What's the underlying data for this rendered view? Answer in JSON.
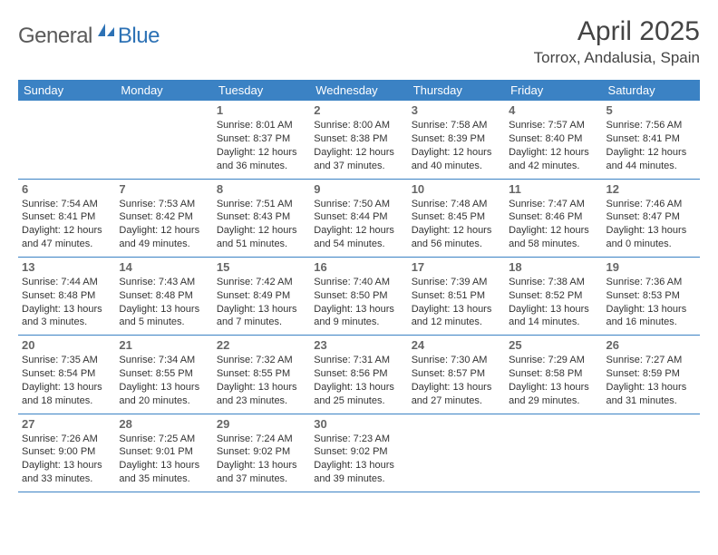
{
  "logo": {
    "general": "General",
    "blue": "Blue"
  },
  "title": "April 2025",
  "location": "Torrox, Andalusia, Spain",
  "colors": {
    "header_bg": "#3b82c4",
    "header_text": "#ffffff",
    "border": "#3b82c4",
    "logo_gray": "#5a5a5a",
    "logo_blue": "#2d72b5",
    "text": "#333333",
    "daynum": "#666666"
  },
  "day_headers": [
    "Sunday",
    "Monday",
    "Tuesday",
    "Wednesday",
    "Thursday",
    "Friday",
    "Saturday"
  ],
  "weeks": [
    [
      null,
      null,
      {
        "n": "1",
        "sr": "8:01 AM",
        "ss": "8:37 PM",
        "dl": "12 hours and 36 minutes."
      },
      {
        "n": "2",
        "sr": "8:00 AM",
        "ss": "8:38 PM",
        "dl": "12 hours and 37 minutes."
      },
      {
        "n": "3",
        "sr": "7:58 AM",
        "ss": "8:39 PM",
        "dl": "12 hours and 40 minutes."
      },
      {
        "n": "4",
        "sr": "7:57 AM",
        "ss": "8:40 PM",
        "dl": "12 hours and 42 minutes."
      },
      {
        "n": "5",
        "sr": "7:56 AM",
        "ss": "8:41 PM",
        "dl": "12 hours and 44 minutes."
      }
    ],
    [
      {
        "n": "6",
        "sr": "7:54 AM",
        "ss": "8:41 PM",
        "dl": "12 hours and 47 minutes."
      },
      {
        "n": "7",
        "sr": "7:53 AM",
        "ss": "8:42 PM",
        "dl": "12 hours and 49 minutes."
      },
      {
        "n": "8",
        "sr": "7:51 AM",
        "ss": "8:43 PM",
        "dl": "12 hours and 51 minutes."
      },
      {
        "n": "9",
        "sr": "7:50 AM",
        "ss": "8:44 PM",
        "dl": "12 hours and 54 minutes."
      },
      {
        "n": "10",
        "sr": "7:48 AM",
        "ss": "8:45 PM",
        "dl": "12 hours and 56 minutes."
      },
      {
        "n": "11",
        "sr": "7:47 AM",
        "ss": "8:46 PM",
        "dl": "12 hours and 58 minutes."
      },
      {
        "n": "12",
        "sr": "7:46 AM",
        "ss": "8:47 PM",
        "dl": "13 hours and 0 minutes."
      }
    ],
    [
      {
        "n": "13",
        "sr": "7:44 AM",
        "ss": "8:48 PM",
        "dl": "13 hours and 3 minutes."
      },
      {
        "n": "14",
        "sr": "7:43 AM",
        "ss": "8:48 PM",
        "dl": "13 hours and 5 minutes."
      },
      {
        "n": "15",
        "sr": "7:42 AM",
        "ss": "8:49 PM",
        "dl": "13 hours and 7 minutes."
      },
      {
        "n": "16",
        "sr": "7:40 AM",
        "ss": "8:50 PM",
        "dl": "13 hours and 9 minutes."
      },
      {
        "n": "17",
        "sr": "7:39 AM",
        "ss": "8:51 PM",
        "dl": "13 hours and 12 minutes."
      },
      {
        "n": "18",
        "sr": "7:38 AM",
        "ss": "8:52 PM",
        "dl": "13 hours and 14 minutes."
      },
      {
        "n": "19",
        "sr": "7:36 AM",
        "ss": "8:53 PM",
        "dl": "13 hours and 16 minutes."
      }
    ],
    [
      {
        "n": "20",
        "sr": "7:35 AM",
        "ss": "8:54 PM",
        "dl": "13 hours and 18 minutes."
      },
      {
        "n": "21",
        "sr": "7:34 AM",
        "ss": "8:55 PM",
        "dl": "13 hours and 20 minutes."
      },
      {
        "n": "22",
        "sr": "7:32 AM",
        "ss": "8:55 PM",
        "dl": "13 hours and 23 minutes."
      },
      {
        "n": "23",
        "sr": "7:31 AM",
        "ss": "8:56 PM",
        "dl": "13 hours and 25 minutes."
      },
      {
        "n": "24",
        "sr": "7:30 AM",
        "ss": "8:57 PM",
        "dl": "13 hours and 27 minutes."
      },
      {
        "n": "25",
        "sr": "7:29 AM",
        "ss": "8:58 PM",
        "dl": "13 hours and 29 minutes."
      },
      {
        "n": "26",
        "sr": "7:27 AM",
        "ss": "8:59 PM",
        "dl": "13 hours and 31 minutes."
      }
    ],
    [
      {
        "n": "27",
        "sr": "7:26 AM",
        "ss": "9:00 PM",
        "dl": "13 hours and 33 minutes."
      },
      {
        "n": "28",
        "sr": "7:25 AM",
        "ss": "9:01 PM",
        "dl": "13 hours and 35 minutes."
      },
      {
        "n": "29",
        "sr": "7:24 AM",
        "ss": "9:02 PM",
        "dl": "13 hours and 37 minutes."
      },
      {
        "n": "30",
        "sr": "7:23 AM",
        "ss": "9:02 PM",
        "dl": "13 hours and 39 minutes."
      },
      null,
      null,
      null
    ]
  ],
  "labels": {
    "sunrise": "Sunrise:",
    "sunset": "Sunset:",
    "daylight": "Daylight:"
  }
}
